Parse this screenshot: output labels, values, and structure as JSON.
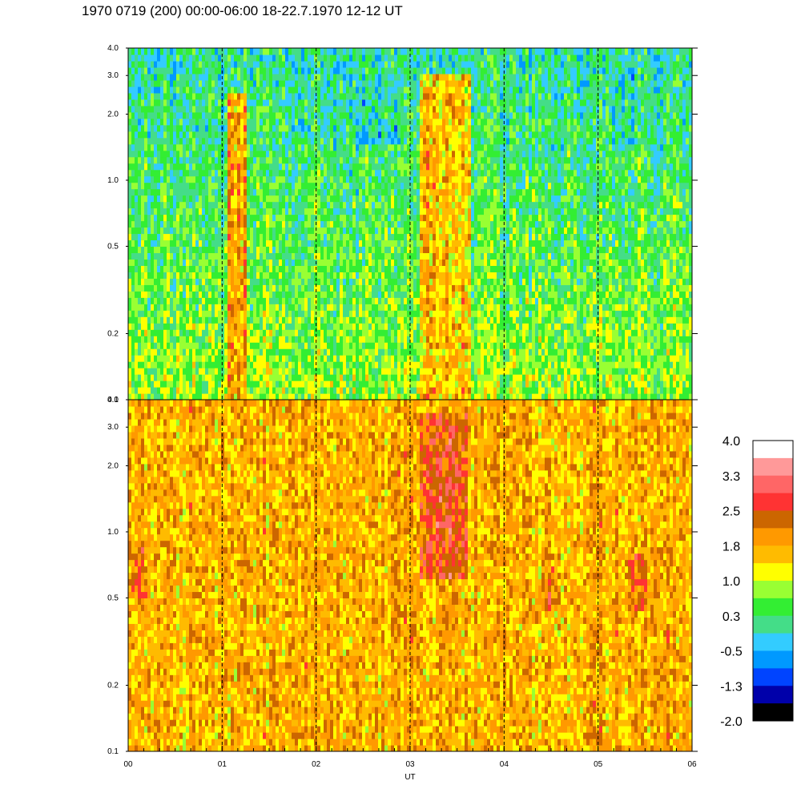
{
  "title": "1970 0719 (200) 00:00-06:00 18-22.7.1970  12-12 UT",
  "chart_data": [
    {
      "type": "heatmap",
      "panel": "top",
      "x_range": [
        0,
        6
      ],
      "x_ticks": [
        0,
        1,
        2,
        3,
        4,
        5,
        6
      ],
      "y_scale": "log",
      "y_range": [
        0.1,
        4.0
      ],
      "y_ticks": [
        0.1,
        0.2,
        0.5,
        1.0,
        2.0,
        3.0,
        4.0
      ],
      "y_tick_labels": [
        "0.1",
        "0.2",
        "0.5",
        "1.0",
        "2.0",
        "3.0",
        "4.0"
      ],
      "dashed_verticals": [
        1,
        2,
        3,
        4,
        5
      ],
      "dominant_level_low_freq": 0.8,
      "dominant_level_high_freq": 0.0,
      "enhanced_bands": [
        {
          "x_start": 1.05,
          "x_end": 1.25,
          "level": 1.8,
          "y_max": 2.5
        },
        {
          "x_start": 3.1,
          "x_end": 3.65,
          "level": 1.6,
          "y_max": 3.0
        }
      ],
      "depleted_regions": [
        {
          "x_start": 2.4,
          "x_end": 2.9,
          "level": -0.4,
          "y_min": 1.5,
          "y_max": 3.0
        },
        {
          "x_start": 5.1,
          "x_end": 5.5,
          "level": -0.3,
          "y_min": 1.5,
          "y_max": 3.0
        }
      ]
    },
    {
      "type": "heatmap",
      "panel": "bottom",
      "x_range": [
        0,
        6
      ],
      "x_ticks": [
        0,
        1,
        2,
        3,
        4,
        5,
        6
      ],
      "x_tick_labels": [
        "00",
        "01",
        "02",
        "03",
        "04",
        "05",
        "06"
      ],
      "xlabel": "UT",
      "y_scale": "log",
      "y_range": [
        0.1,
        4.0
      ],
      "y_ticks": [
        0.1,
        0.2,
        0.5,
        1.0,
        2.0,
        3.0,
        4.0
      ],
      "y_tick_labels": [
        "0.1",
        "0.2",
        "0.5",
        "1.0",
        "2.0",
        "3.0",
        "4.0"
      ],
      "dashed_verticals": [
        1,
        2,
        3,
        4,
        5
      ],
      "dominant_level": 1.7,
      "enhanced_bands": [
        {
          "x_start": 3.1,
          "x_end": 3.6,
          "level": 2.5,
          "y_min": 0.6,
          "y_max": 3.5
        },
        {
          "x_start": 0.0,
          "x_end": 0.2,
          "level": 2.1,
          "y_min": 0.5,
          "y_max": 0.9
        },
        {
          "x_start": 4.4,
          "x_end": 4.6,
          "level": 2.1,
          "y_min": 0.45,
          "y_max": 0.8
        },
        {
          "x_start": 5.3,
          "x_end": 5.55,
          "level": 2.1,
          "y_min": 0.45,
          "y_max": 0.8
        }
      ]
    }
  ],
  "colorbar": {
    "labels": [
      "4.0",
      "3.3",
      "2.5",
      "1.8",
      "1.0",
      "0.3",
      "-0.5",
      "-1.3",
      "-2.0"
    ],
    "colors_top_to_bottom": [
      "#ffffff",
      "#ff9999",
      "#ff6666",
      "#ff3333",
      "#cc6600",
      "#ff9900",
      "#ffbb00",
      "#ffff00",
      "#99ff33",
      "#33ee33",
      "#44dd88",
      "#33ccff",
      "#0099ff",
      "#0044ff",
      "#0000aa",
      "#000000"
    ]
  }
}
